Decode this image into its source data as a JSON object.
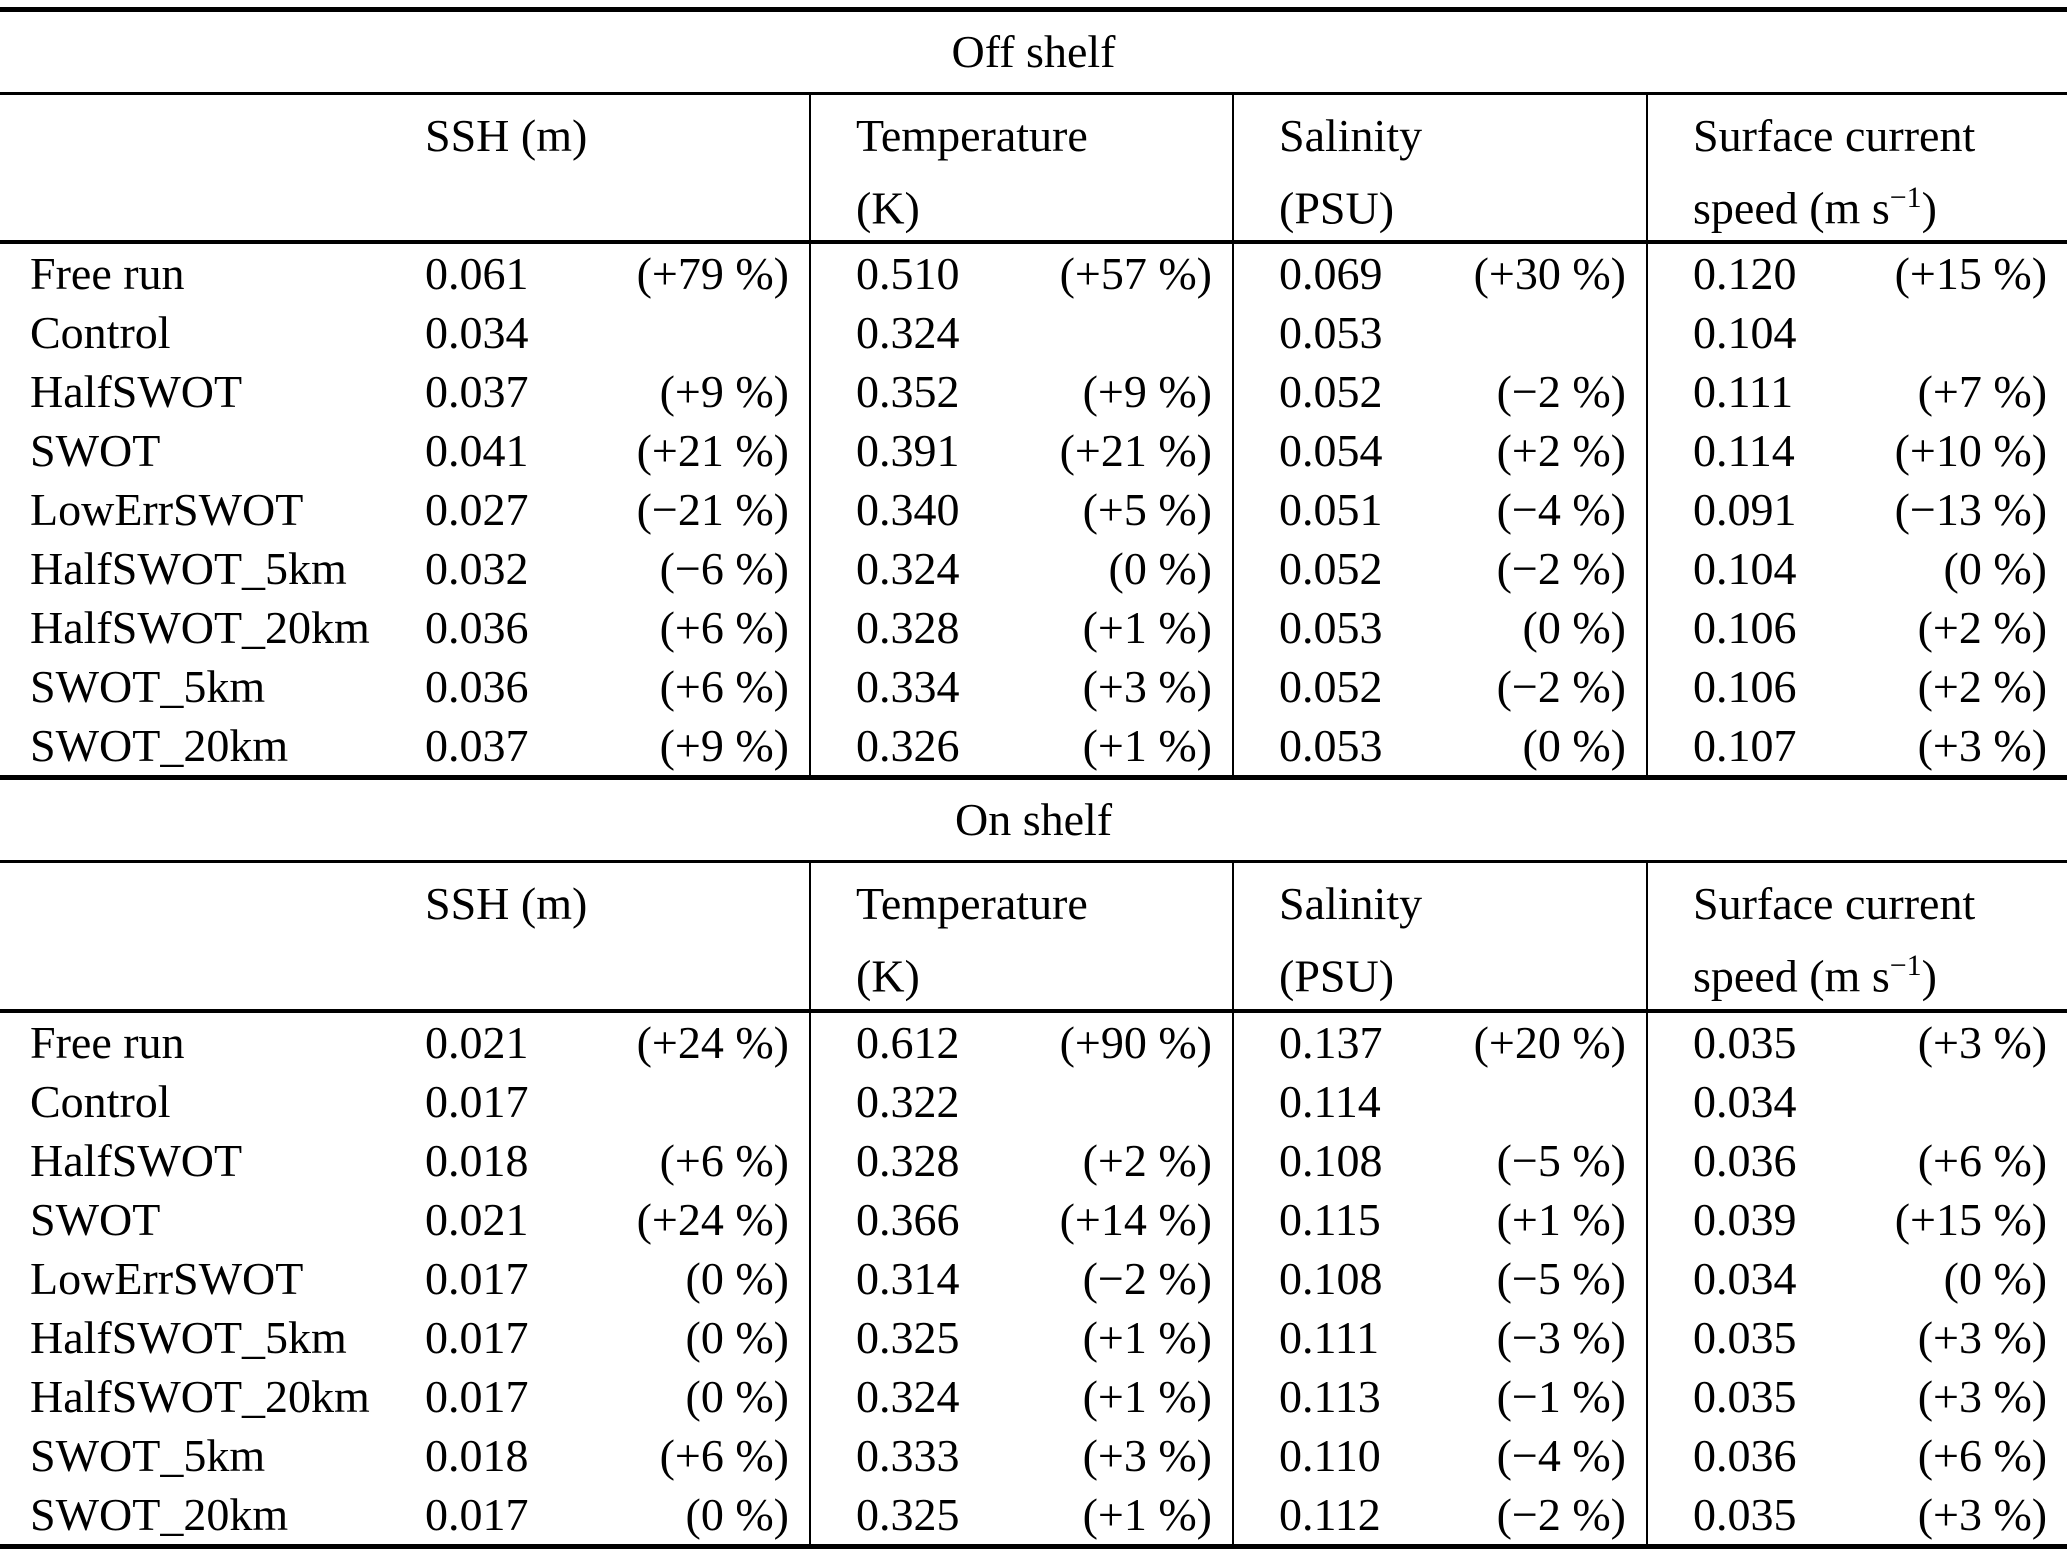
{
  "table": {
    "sections": [
      {
        "title": "Off shelf",
        "columns": [
          {
            "line1": "SSH (m)",
            "line2_prefix": "",
            "line2_sup": "",
            "line2_suffix": ""
          },
          {
            "line1": "Temperature",
            "line2_prefix": "(K)",
            "line2_sup": "",
            "line2_suffix": ""
          },
          {
            "line1": "Salinity",
            "line2_prefix": "(PSU)",
            "line2_sup": "",
            "line2_suffix": ""
          },
          {
            "line1": "Surface current",
            "line2_prefix": "speed (m s",
            "line2_sup": "−1",
            "line2_suffix": ")"
          }
        ],
        "rows": [
          {
            "label": "Free run",
            "cells": [
              {
                "v": "0.061",
                "p": "(+79 %)"
              },
              {
                "v": "0.510",
                "p": "(+57 %)"
              },
              {
                "v": "0.069",
                "p": "(+30 %)"
              },
              {
                "v": "0.120",
                "p": "(+15 %)"
              }
            ]
          },
          {
            "label": "Control",
            "cells": [
              {
                "v": "0.034",
                "p": ""
              },
              {
                "v": "0.324",
                "p": ""
              },
              {
                "v": "0.053",
                "p": ""
              },
              {
                "v": "0.104",
                "p": ""
              }
            ]
          },
          {
            "label": "HalfSWOT",
            "cells": [
              {
                "v": "0.037",
                "p": "(+9 %)"
              },
              {
                "v": "0.352",
                "p": "(+9 %)"
              },
              {
                "v": "0.052",
                "p": "(−2 %)"
              },
              {
                "v": "0.111",
                "p": "(+7 %)"
              }
            ]
          },
          {
            "label": "SWOT",
            "cells": [
              {
                "v": "0.041",
                "p": "(+21 %)"
              },
              {
                "v": "0.391",
                "p": "(+21 %)"
              },
              {
                "v": "0.054",
                "p": "(+2 %)"
              },
              {
                "v": "0.114",
                "p": "(+10 %)"
              }
            ]
          },
          {
            "label": "LowErrSWOT",
            "cells": [
              {
                "v": "0.027",
                "p": "(−21 %)"
              },
              {
                "v": "0.340",
                "p": "(+5 %)"
              },
              {
                "v": "0.051",
                "p": "(−4 %)"
              },
              {
                "v": "0.091",
                "p": "(−13 %)"
              }
            ]
          },
          {
            "label": "HalfSWOT_5km",
            "cells": [
              {
                "v": "0.032",
                "p": "(−6 %)"
              },
              {
                "v": "0.324",
                "p": "(0 %)"
              },
              {
                "v": "0.052",
                "p": "(−2 %)"
              },
              {
                "v": "0.104",
                "p": "(0 %)"
              }
            ]
          },
          {
            "label": "HalfSWOT_20km",
            "cells": [
              {
                "v": "0.036",
                "p": "(+6 %)"
              },
              {
                "v": "0.328",
                "p": "(+1 %)"
              },
              {
                "v": "0.053",
                "p": "(0 %)"
              },
              {
                "v": "0.106",
                "p": "(+2 %)"
              }
            ]
          },
          {
            "label": "SWOT_5km",
            "cells": [
              {
                "v": "0.036",
                "p": "(+6 %)"
              },
              {
                "v": "0.334",
                "p": "(+3 %)"
              },
              {
                "v": "0.052",
                "p": "(−2 %)"
              },
              {
                "v": "0.106",
                "p": "(+2 %)"
              }
            ]
          },
          {
            "label": "SWOT_20km",
            "cells": [
              {
                "v": "0.037",
                "p": "(+9 %)"
              },
              {
                "v": "0.326",
                "p": "(+1 %)"
              },
              {
                "v": "0.053",
                "p": "(0 %)"
              },
              {
                "v": "0.107",
                "p": "(+3 %)"
              }
            ]
          }
        ]
      },
      {
        "title": "On shelf",
        "columns": [
          {
            "line1": "SSH (m)",
            "line2_prefix": "",
            "line2_sup": "",
            "line2_suffix": ""
          },
          {
            "line1": "Temperature",
            "line2_prefix": "(K)",
            "line2_sup": "",
            "line2_suffix": ""
          },
          {
            "line1": "Salinity",
            "line2_prefix": "(PSU)",
            "line2_sup": "",
            "line2_suffix": ""
          },
          {
            "line1": "Surface current",
            "line2_prefix": "speed (m s",
            "line2_sup": "−1",
            "line2_suffix": ")"
          }
        ],
        "rows": [
          {
            "label": "Free run",
            "cells": [
              {
                "v": "0.021",
                "p": "(+24 %)"
              },
              {
                "v": "0.612",
                "p": "(+90 %)"
              },
              {
                "v": "0.137",
                "p": "(+20 %)"
              },
              {
                "v": "0.035",
                "p": "(+3 %)"
              }
            ]
          },
          {
            "label": "Control",
            "cells": [
              {
                "v": "0.017",
                "p": ""
              },
              {
                "v": "0.322",
                "p": ""
              },
              {
                "v": "0.114",
                "p": ""
              },
              {
                "v": "0.034",
                "p": ""
              }
            ]
          },
          {
            "label": "HalfSWOT",
            "cells": [
              {
                "v": "0.018",
                "p": "(+6 %)"
              },
              {
                "v": "0.328",
                "p": "(+2 %)"
              },
              {
                "v": "0.108",
                "p": "(−5 %)"
              },
              {
                "v": "0.036",
                "p": "(+6 %)"
              }
            ]
          },
          {
            "label": "SWOT",
            "cells": [
              {
                "v": "0.021",
                "p": "(+24 %)"
              },
              {
                "v": "0.366",
                "p": "(+14 %)"
              },
              {
                "v": "0.115",
                "p": "(+1 %)"
              },
              {
                "v": "0.039",
                "p": "(+15 %)"
              }
            ]
          },
          {
            "label": "LowErrSWOT",
            "cells": [
              {
                "v": "0.017",
                "p": "(0 %)"
              },
              {
                "v": "0.314",
                "p": "(−2 %)"
              },
              {
                "v": "0.108",
                "p": "(−5 %)"
              },
              {
                "v": "0.034",
                "p": "(0 %)"
              }
            ]
          },
          {
            "label": "HalfSWOT_5km",
            "cells": [
              {
                "v": "0.017",
                "p": "(0 %)"
              },
              {
                "v": "0.325",
                "p": "(+1 %)"
              },
              {
                "v": "0.111",
                "p": "(−3 %)"
              },
              {
                "v": "0.035",
                "p": "(+3 %)"
              }
            ]
          },
          {
            "label": "HalfSWOT_20km",
            "cells": [
              {
                "v": "0.017",
                "p": "(0 %)"
              },
              {
                "v": "0.324",
                "p": "(+1 %)"
              },
              {
                "v": "0.113",
                "p": "(−1 %)"
              },
              {
                "v": "0.035",
                "p": "(+3 %)"
              }
            ]
          },
          {
            "label": "SWOT_5km",
            "cells": [
              {
                "v": "0.018",
                "p": "(+6 %)"
              },
              {
                "v": "0.333",
                "p": "(+3 %)"
              },
              {
                "v": "0.110",
                "p": "(−4 %)"
              },
              {
                "v": "0.036",
                "p": "(+6 %)"
              }
            ]
          },
          {
            "label": "SWOT_20km",
            "cells": [
              {
                "v": "0.017",
                "p": "(0 %)"
              },
              {
                "v": "0.325",
                "p": "(+1 %)"
              },
              {
                "v": "0.112",
                "p": "(−2 %)"
              },
              {
                "v": "0.035",
                "p": "(+3 %)"
              }
            ]
          }
        ]
      }
    ]
  }
}
